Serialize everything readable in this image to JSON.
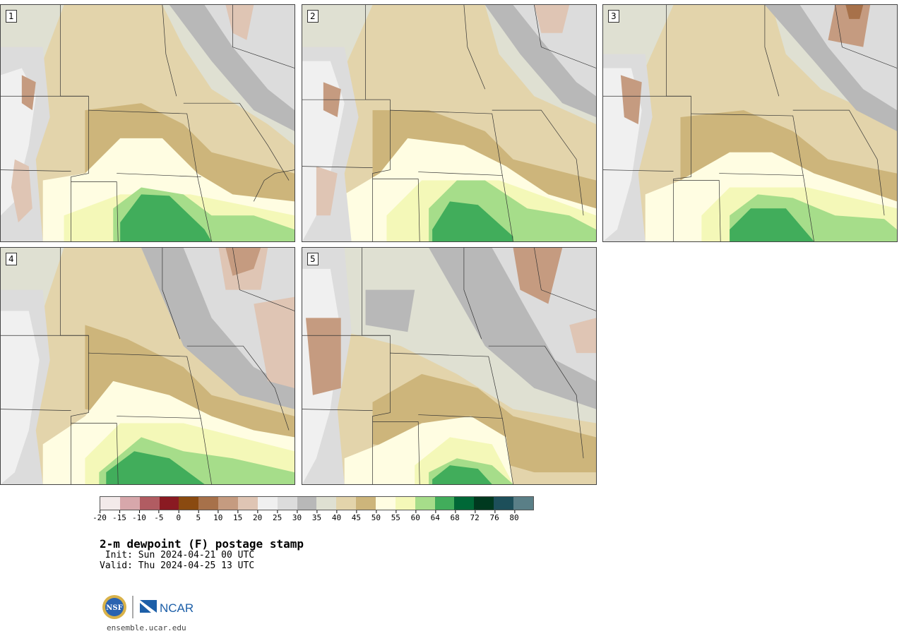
{
  "panels": [
    {
      "label": "1"
    },
    {
      "label": "2"
    },
    {
      "label": "3"
    },
    {
      "label": "4"
    },
    {
      "label": "5"
    }
  ],
  "legend": {
    "colors": [
      "#f3eaea",
      "#d7a7ab",
      "#b15c62",
      "#8a1a22",
      "#8a4a10",
      "#a7714a",
      "#c59b80",
      "#dfc5b4",
      "#f0f0f0",
      "#dcdcdc",
      "#b8b8b8",
      "#dfe0d2",
      "#e3d4ab",
      "#cdb57b",
      "#fffde2",
      "#f4f8b8",
      "#a6dd8a",
      "#41ad5b",
      "#006837",
      "#00391f",
      "#1d4f5a",
      "#5a7f87"
    ],
    "ticks": [
      "-20",
      "-15",
      "-10",
      "-5",
      "0",
      "5",
      "10",
      "15",
      "20",
      "25",
      "30",
      "35",
      "40",
      "45",
      "50",
      "55",
      "60",
      "64",
      "68",
      "72",
      "76",
      "80"
    ]
  },
  "title": "2-m dewpoint (F) postage stamp",
  "init_line": " Init: Sun 2024-04-21 00 UTC",
  "valid_line": "Valid: Thu 2024-04-25 13 UTC",
  "logo": {
    "nsf": "NSF",
    "ncar": "NCAR"
  },
  "site": "ensemble.ucar.edu"
}
